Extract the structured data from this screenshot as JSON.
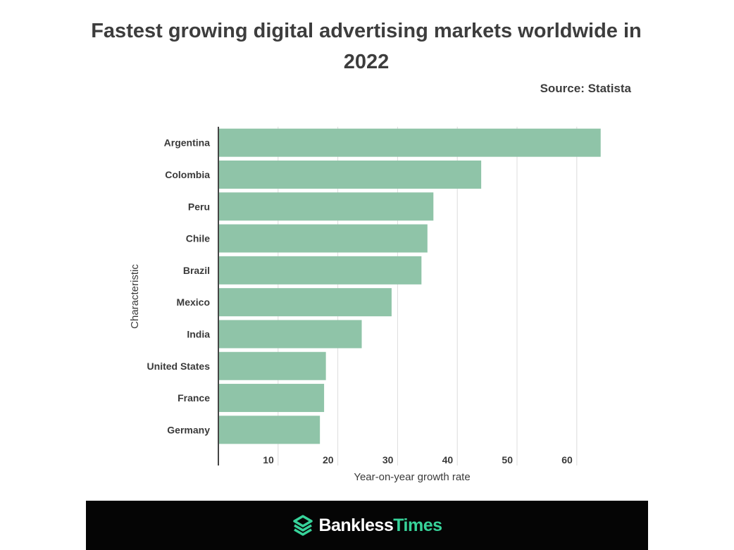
{
  "title": "Fastest growing digital advertising markets worldwide in 2022",
  "source": "Source: Statista",
  "brand": {
    "part1": "Bankless",
    "part2": "Times",
    "accent": "#37d39a"
  },
  "chart_data": {
    "type": "bar",
    "orientation": "horizontal",
    "categories": [
      "Argentina",
      "Colombia",
      "Peru",
      "Chile",
      "Brazil",
      "Mexico",
      "India",
      "United States",
      "France",
      "Germany"
    ],
    "values": [
      64,
      44,
      36,
      35,
      34,
      29,
      24,
      18,
      17.7,
      17
    ],
    "xlabel": "Year-on-year growth rate",
    "ylabel": "Characteristic",
    "xlim": [
      0,
      66
    ],
    "xticks": [
      10,
      20,
      30,
      40,
      50,
      60
    ],
    "grid": true,
    "bar_color": "#8fc4a8"
  }
}
